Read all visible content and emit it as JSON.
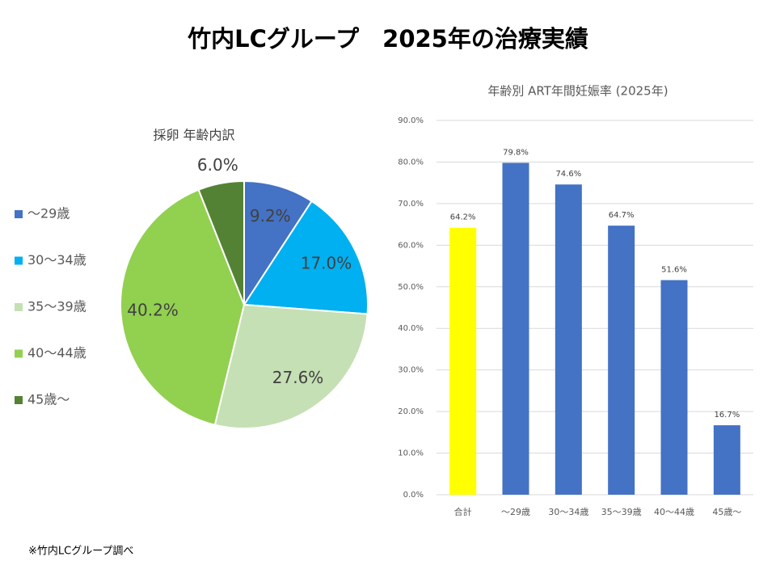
{
  "title": "竹内LCグループ　2025年の治療実績",
  "footnote": "※竹内LCグループ調べ",
  "chart_data": [
    {
      "type": "pie",
      "title": "採卵 年齢内訳",
      "categories": [
        "～29歳",
        "30～34歳",
        "35～39歳",
        "40～44歳",
        "45歳～"
      ],
      "values": [
        9.2,
        17.0,
        27.6,
        40.2,
        6.0
      ],
      "value_labels": [
        "9.2%",
        "17.0%",
        "27.6%",
        "40.2%",
        "6.0%"
      ],
      "colors": [
        "#4472c4",
        "#00b0f0",
        "#c5e0b4",
        "#92d050",
        "#548235"
      ],
      "legend": "left"
    },
    {
      "type": "bar",
      "title": "年齢別 ART年間妊娠率 (2025年)",
      "categories": [
        "合計",
        "～29歳",
        "30～34歳",
        "35～39歳",
        "40～44歳",
        "45歳～"
      ],
      "values": [
        64.2,
        79.8,
        74.6,
        64.7,
        51.6,
        16.7
      ],
      "value_labels": [
        "64.2%",
        "79.8%",
        "74.6%",
        "64.7%",
        "51.6%",
        "16.7%"
      ],
      "colors": [
        "#ffff00",
        "#4472c4",
        "#4472c4",
        "#4472c4",
        "#4472c4",
        "#4472c4"
      ],
      "ylim": [
        0,
        90
      ],
      "yticks": [
        {
          "value": 0,
          "label": "0.0%"
        },
        {
          "value": 10,
          "label": "10.0%"
        },
        {
          "value": 20,
          "label": "20.0%"
        },
        {
          "value": 30,
          "label": "30.0%"
        },
        {
          "value": 40,
          "label": "40.0%"
        },
        {
          "value": 50,
          "label": "50.0%"
        },
        {
          "value": 60,
          "label": "60.0%"
        },
        {
          "value": 70,
          "label": "70.0%"
        },
        {
          "value": 80,
          "label": "80.0%"
        },
        {
          "value": 90,
          "label": "90.0%"
        }
      ],
      "grid": true
    }
  ]
}
